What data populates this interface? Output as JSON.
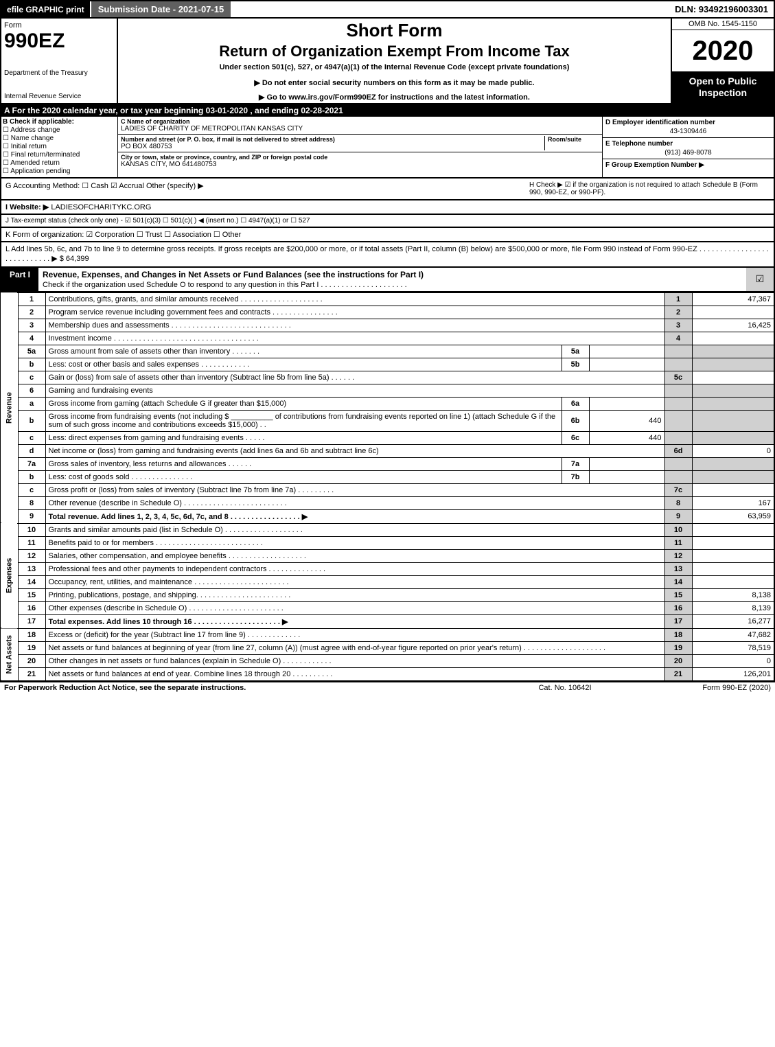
{
  "topbar": {
    "efile": "efile GRAPHIC print",
    "subdate": "Submission Date - 2021-07-15",
    "dln": "DLN: 93492196003301"
  },
  "header": {
    "form_label": "Form",
    "form_num": "990EZ",
    "dept": "Department of the Treasury",
    "irs": "Internal Revenue Service",
    "short": "Short Form",
    "return": "Return of Organization Exempt From Income Tax",
    "under": "Under section 501(c), 527, or 4947(a)(1) of the Internal Revenue Code (except private foundations)",
    "noenter": "▶ Do not enter social security numbers on this form as it may be made public.",
    "goto": "▶ Go to www.irs.gov/Form990EZ for instructions and the latest information.",
    "omb": "OMB No. 1545-1150",
    "year": "2020",
    "open": "Open to Public Inspection"
  },
  "period": "A For the 2020 calendar year, or tax year beginning 03-01-2020 , and ending 02-28-2021",
  "checkB": {
    "label": "B Check if applicable:",
    "items": [
      "☐ Address change",
      "☐ Name change",
      "☐ Initial return",
      "☐ Final return/terminated",
      "☐ Amended return",
      "☐ Application pending"
    ]
  },
  "entity": {
    "c_label": "C Name of organization",
    "name": "LADIES OF CHARITY OF METROPOLITAN KANSAS CITY",
    "addr_label": "Number and street (or P. O. box, if mail is not delivered to street address)",
    "room_label": "Room/suite",
    "addr": "PO BOX 480753",
    "city_label": "City or town, state or province, country, and ZIP or foreign postal code",
    "city": "KANSAS CITY, MO  641480753",
    "d_label": "D Employer identification number",
    "ein": "43-1309446",
    "e_label": "E Telephone number",
    "phone": "(913) 469-8078",
    "f_label": "F Group Exemption Number  ▶"
  },
  "acct": {
    "g": "G Accounting Method:   ☐ Cash   ☑ Accrual   Other (specify) ▶",
    "h": "H  Check ▶  ☑  if the organization is not required to attach Schedule B (Form 990, 990-EZ, or 990-PF)."
  },
  "website": {
    "label": "I Website: ▶",
    "val": "LADIESOFCHARITYKC.ORG"
  },
  "taxexempt": "J Tax-exempt status (check only one) - ☑ 501(c)(3) ☐ 501(c)(  ) ◀ (insert no.) ☐ 4947(a)(1) or ☐ 527",
  "korg": "K Form of organization:   ☑ Corporation   ☐ Trust   ☐ Association   ☐ Other",
  "lineL": "L Add lines 5b, 6c, and 7b to line 9 to determine gross receipts. If gross receipts are $200,000 or more, or if total assets (Part II, column (B) below) are $500,000 or more, file Form 990 instead of Form 990-EZ  .  .  .  .  .  .  .  .  .  .  .  .  .  .  .  .  .  .  .  .  .  .  .  .  .  .  .  .  ▶ $ 64,399",
  "part1": {
    "tag": "Part I",
    "title": "Revenue, Expenses, and Changes in Net Assets or Fund Balances (see the instructions for Part I)",
    "sub": "Check if the organization used Schedule O to respond to any question in this Part I  .  .  .  .  .  .  .  .  .  .  .  .  .  .  .  .  .  .  .  .  .",
    "chk": "☑"
  },
  "sections": {
    "rev": "Revenue",
    "exp": "Expenses",
    "na": "Net Assets"
  },
  "lines": [
    {
      "n": "1",
      "d": "Contributions, gifts, grants, and similar amounts received  .  .  .  .  .  .  .  .  .  .  .  .  .  .  .  .  .  .  .  .",
      "ln": "1",
      "a": "47,367"
    },
    {
      "n": "2",
      "d": "Program service revenue including government fees and contracts  .  .  .  .  .  .  .  .  .  .  .  .  .  .  .  .",
      "ln": "2",
      "a": ""
    },
    {
      "n": "3",
      "d": "Membership dues and assessments  .  .  .  .  .  .  .  .  .  .  .  .  .  .  .  .  .  .  .  .  .  .  .  .  .  .  .  .  .",
      "ln": "3",
      "a": "16,425"
    },
    {
      "n": "4",
      "d": "Investment income  .  .  .  .  .  .  .  .  .  .  .  .  .  .  .  .  .  .  .  .  .  .  .  .  .  .  .  .  .  .  .  .  .  .  .",
      "ln": "4",
      "a": ""
    },
    {
      "n": "5a",
      "d": "Gross amount from sale of assets other than inventory  .  .  .  .  .  .  .",
      "sub": "5a",
      "sv": ""
    },
    {
      "n": "b",
      "d": "Less: cost or other basis and sales expenses  .  .  .  .  .  .  .  .  .  .  .  .",
      "sub": "5b",
      "sv": ""
    },
    {
      "n": "c",
      "d": "Gain or (loss) from sale of assets other than inventory (Subtract line 5b from line 5a)  .  .  .  .  .  .",
      "ln": "5c",
      "a": ""
    },
    {
      "n": "6",
      "d": "Gaming and fundraising events",
      "shade": true
    },
    {
      "n": "a",
      "d": "Gross income from gaming (attach Schedule G if greater than $15,000)",
      "sub": "6a",
      "sv": ""
    },
    {
      "n": "b",
      "d": "Gross income from fundraising events (not including $ __________ of contributions from fundraising events reported on line 1) (attach Schedule G if the sum of such gross income and contributions exceeds $15,000)   .  .",
      "sub": "6b",
      "sv": "440"
    },
    {
      "n": "c",
      "d": "Less: direct expenses from gaming and fundraising events   .  .  .  .  .",
      "sub": "6c",
      "sv": "440"
    },
    {
      "n": "d",
      "d": "Net income or (loss) from gaming and fundraising events (add lines 6a and 6b and subtract line 6c)",
      "ln": "6d",
      "a": "0"
    },
    {
      "n": "7a",
      "d": "Gross sales of inventory, less returns and allowances  .  .  .  .  .  .",
      "sub": "7a",
      "sv": ""
    },
    {
      "n": "b",
      "d": "Less: cost of goods sold       .  .  .  .  .  .  .  .  .  .  .  .  .  .  .",
      "sub": "7b",
      "sv": ""
    },
    {
      "n": "c",
      "d": "Gross profit or (loss) from sales of inventory (Subtract line 7b from line 7a)  .  .  .  .  .  .  .  .  .",
      "ln": "7c",
      "a": ""
    },
    {
      "n": "8",
      "d": "Other revenue (describe in Schedule O)  .  .  .  .  .  .  .  .  .  .  .  .  .  .  .  .  .  .  .  .  .  .  .  .  .",
      "ln": "8",
      "a": "167"
    },
    {
      "n": "9",
      "d": "Total revenue. Add lines 1, 2, 3, 4, 5c, 6d, 7c, and 8   .  .  .  .  .  .  .  .  .  .  .  .  .  .  .  .  .   ▶",
      "ln": "9",
      "a": "63,959",
      "bold": true
    }
  ],
  "exp_lines": [
    {
      "n": "10",
      "d": "Grants and similar amounts paid (list in Schedule O)  .  .  .  .  .  .  .  .  .  .  .  .  .  .  .  .  .  .  .",
      "ln": "10",
      "a": ""
    },
    {
      "n": "11",
      "d": "Benefits paid to or for members     .  .  .  .  .  .  .  .  .  .  .  .  .  .  .  .  .  .  .  .  .  .  .  .  .  .",
      "ln": "11",
      "a": ""
    },
    {
      "n": "12",
      "d": "Salaries, other compensation, and employee benefits  .  .  .  .  .  .  .  .  .  .  .  .  .  .  .  .  .  .  .",
      "ln": "12",
      "a": ""
    },
    {
      "n": "13",
      "d": "Professional fees and other payments to independent contractors  .  .  .  .  .  .  .  .  .  .  .  .  .  .",
      "ln": "13",
      "a": ""
    },
    {
      "n": "14",
      "d": "Occupancy, rent, utilities, and maintenance  .  .  .  .  .  .  .  .  .  .  .  .  .  .  .  .  .  .  .  .  .  .  .",
      "ln": "14",
      "a": ""
    },
    {
      "n": "15",
      "d": "Printing, publications, postage, and shipping.  .  .  .  .  .  .  .  .  .  .  .  .  .  .  .  .  .  .  .  .  .  .",
      "ln": "15",
      "a": "8,138"
    },
    {
      "n": "16",
      "d": "Other expenses (describe in Schedule O)    .  .  .  .  .  .  .  .  .  .  .  .  .  .  .  .  .  .  .  .  .  .  .",
      "ln": "16",
      "a": "8,139"
    },
    {
      "n": "17",
      "d": "Total expenses. Add lines 10 through 16    .  .  .  .  .  .  .  .  .  .  .  .  .  .  .  .  .  .  .  .  .   ▶",
      "ln": "17",
      "a": "16,277",
      "bold": true
    }
  ],
  "na_lines": [
    {
      "n": "18",
      "d": "Excess or (deficit) for the year (Subtract line 17 from line 9)      .  .  .  .  .  .  .  .  .  .  .  .  .",
      "ln": "18",
      "a": "47,682"
    },
    {
      "n": "19",
      "d": "Net assets or fund balances at beginning of year (from line 27, column (A)) (must agree with end-of-year figure reported on prior year's return)  .  .  .  .  .  .  .  .  .  .  .  .  .  .  .  .  .  .  .  .",
      "ln": "19",
      "a": "78,519"
    },
    {
      "n": "20",
      "d": "Other changes in net assets or fund balances (explain in Schedule O)  .  .  .  .  .  .  .  .  .  .  .  .",
      "ln": "20",
      "a": "0"
    },
    {
      "n": "21",
      "d": "Net assets or fund balances at end of year. Combine lines 18 through 20  .  .  .  .  .  .  .  .  .  .",
      "ln": "21",
      "a": "126,201"
    }
  ],
  "footer": {
    "l": "For Paperwork Reduction Act Notice, see the separate instructions.",
    "m": "Cat. No. 10642I",
    "r": "Form 990-EZ (2020)"
  }
}
